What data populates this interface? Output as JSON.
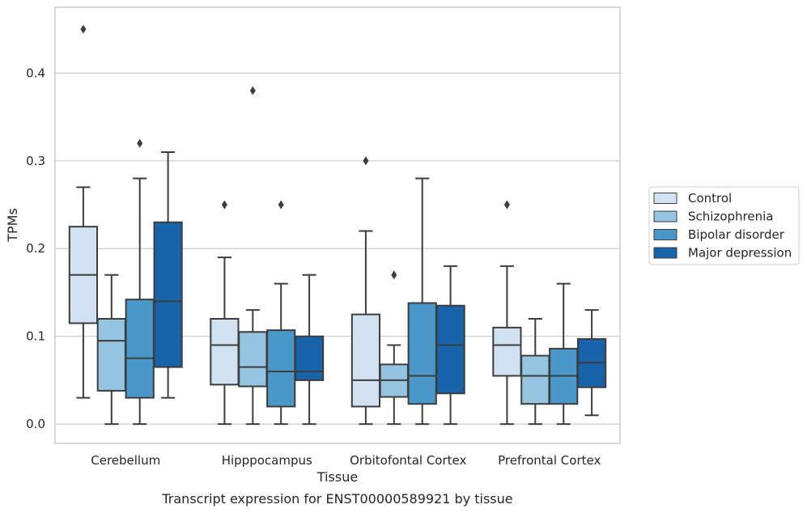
{
  "chart_data": {
    "type": "box",
    "title": "",
    "caption": "Transcript expression for ENST00000589921 by tissue",
    "xlabel": "Tissue",
    "ylabel": "TPMs",
    "ylim": [
      -0.022,
      0.475
    ],
    "yticks": [
      0.0,
      0.1,
      0.2,
      0.3,
      0.4
    ],
    "ytick_labels": [
      "0.0",
      "0.1",
      "0.2",
      "0.3",
      "0.4"
    ],
    "grid": "horizontal",
    "legend_position": "right",
    "categories": [
      "Cerebellum",
      "Hipppocampus",
      "Orbitofontal Cortex",
      "Prefrontal Cortex"
    ],
    "series": [
      {
        "name": "Control",
        "color": "#d0e1f2",
        "boxes": [
          {
            "whisker_low": 0.03,
            "q1": 0.115,
            "median": 0.17,
            "q3": 0.225,
            "whisker_high": 0.27,
            "outliers": [
              0.45
            ]
          },
          {
            "whisker_low": 0.0,
            "q1": 0.045,
            "median": 0.09,
            "q3": 0.12,
            "whisker_high": 0.19,
            "outliers": [
              0.25
            ]
          },
          {
            "whisker_low": 0.0,
            "q1": 0.02,
            "median": 0.05,
            "q3": 0.125,
            "whisker_high": 0.22,
            "outliers": [
              0.3
            ]
          },
          {
            "whisker_low": 0.0,
            "q1": 0.055,
            "median": 0.09,
            "q3": 0.11,
            "whisker_high": 0.18,
            "outliers": [
              0.25
            ]
          }
        ]
      },
      {
        "name": "Schizophrenia",
        "color": "#94c4df",
        "boxes": [
          {
            "whisker_low": 0.0,
            "q1": 0.038,
            "median": 0.095,
            "q3": 0.12,
            "whisker_high": 0.17,
            "outliers": []
          },
          {
            "whisker_low": 0.0,
            "q1": 0.043,
            "median": 0.065,
            "q3": 0.105,
            "whisker_high": 0.13,
            "outliers": [
              0.38
            ]
          },
          {
            "whisker_low": 0.0,
            "q1": 0.031,
            "median": 0.05,
            "q3": 0.068,
            "whisker_high": 0.09,
            "outliers": [
              0.17
            ]
          },
          {
            "whisker_low": 0.0,
            "q1": 0.023,
            "median": 0.055,
            "q3": 0.078,
            "whisker_high": 0.12,
            "outliers": []
          }
        ]
      },
      {
        "name": "Bipolar disorder",
        "color": "#4a98c9",
        "boxes": [
          {
            "whisker_low": 0.0,
            "q1": 0.03,
            "median": 0.075,
            "q3": 0.142,
            "whisker_high": 0.28,
            "outliers": [
              0.32
            ]
          },
          {
            "whisker_low": 0.0,
            "q1": 0.02,
            "median": 0.06,
            "q3": 0.107,
            "whisker_high": 0.16,
            "outliers": [
              0.25
            ]
          },
          {
            "whisker_low": 0.0,
            "q1": 0.023,
            "median": 0.055,
            "q3": 0.138,
            "whisker_high": 0.28,
            "outliers": []
          },
          {
            "whisker_low": 0.0,
            "q1": 0.023,
            "median": 0.055,
            "q3": 0.086,
            "whisker_high": 0.16,
            "outliers": []
          }
        ]
      },
      {
        "name": "Major depression",
        "color": "#1764ab",
        "boxes": [
          {
            "whisker_low": 0.03,
            "q1": 0.065,
            "median": 0.14,
            "q3": 0.23,
            "whisker_high": 0.31,
            "outliers": []
          },
          {
            "whisker_low": 0.0,
            "q1": 0.05,
            "median": 0.06,
            "q3": 0.1,
            "whisker_high": 0.17,
            "outliers": []
          },
          {
            "whisker_low": 0.0,
            "q1": 0.035,
            "median": 0.09,
            "q3": 0.135,
            "whisker_high": 0.18,
            "outliers": []
          },
          {
            "whisker_low": 0.01,
            "q1": 0.042,
            "median": 0.07,
            "q3": 0.097,
            "whisker_high": 0.13,
            "outliers": []
          }
        ]
      }
    ]
  }
}
